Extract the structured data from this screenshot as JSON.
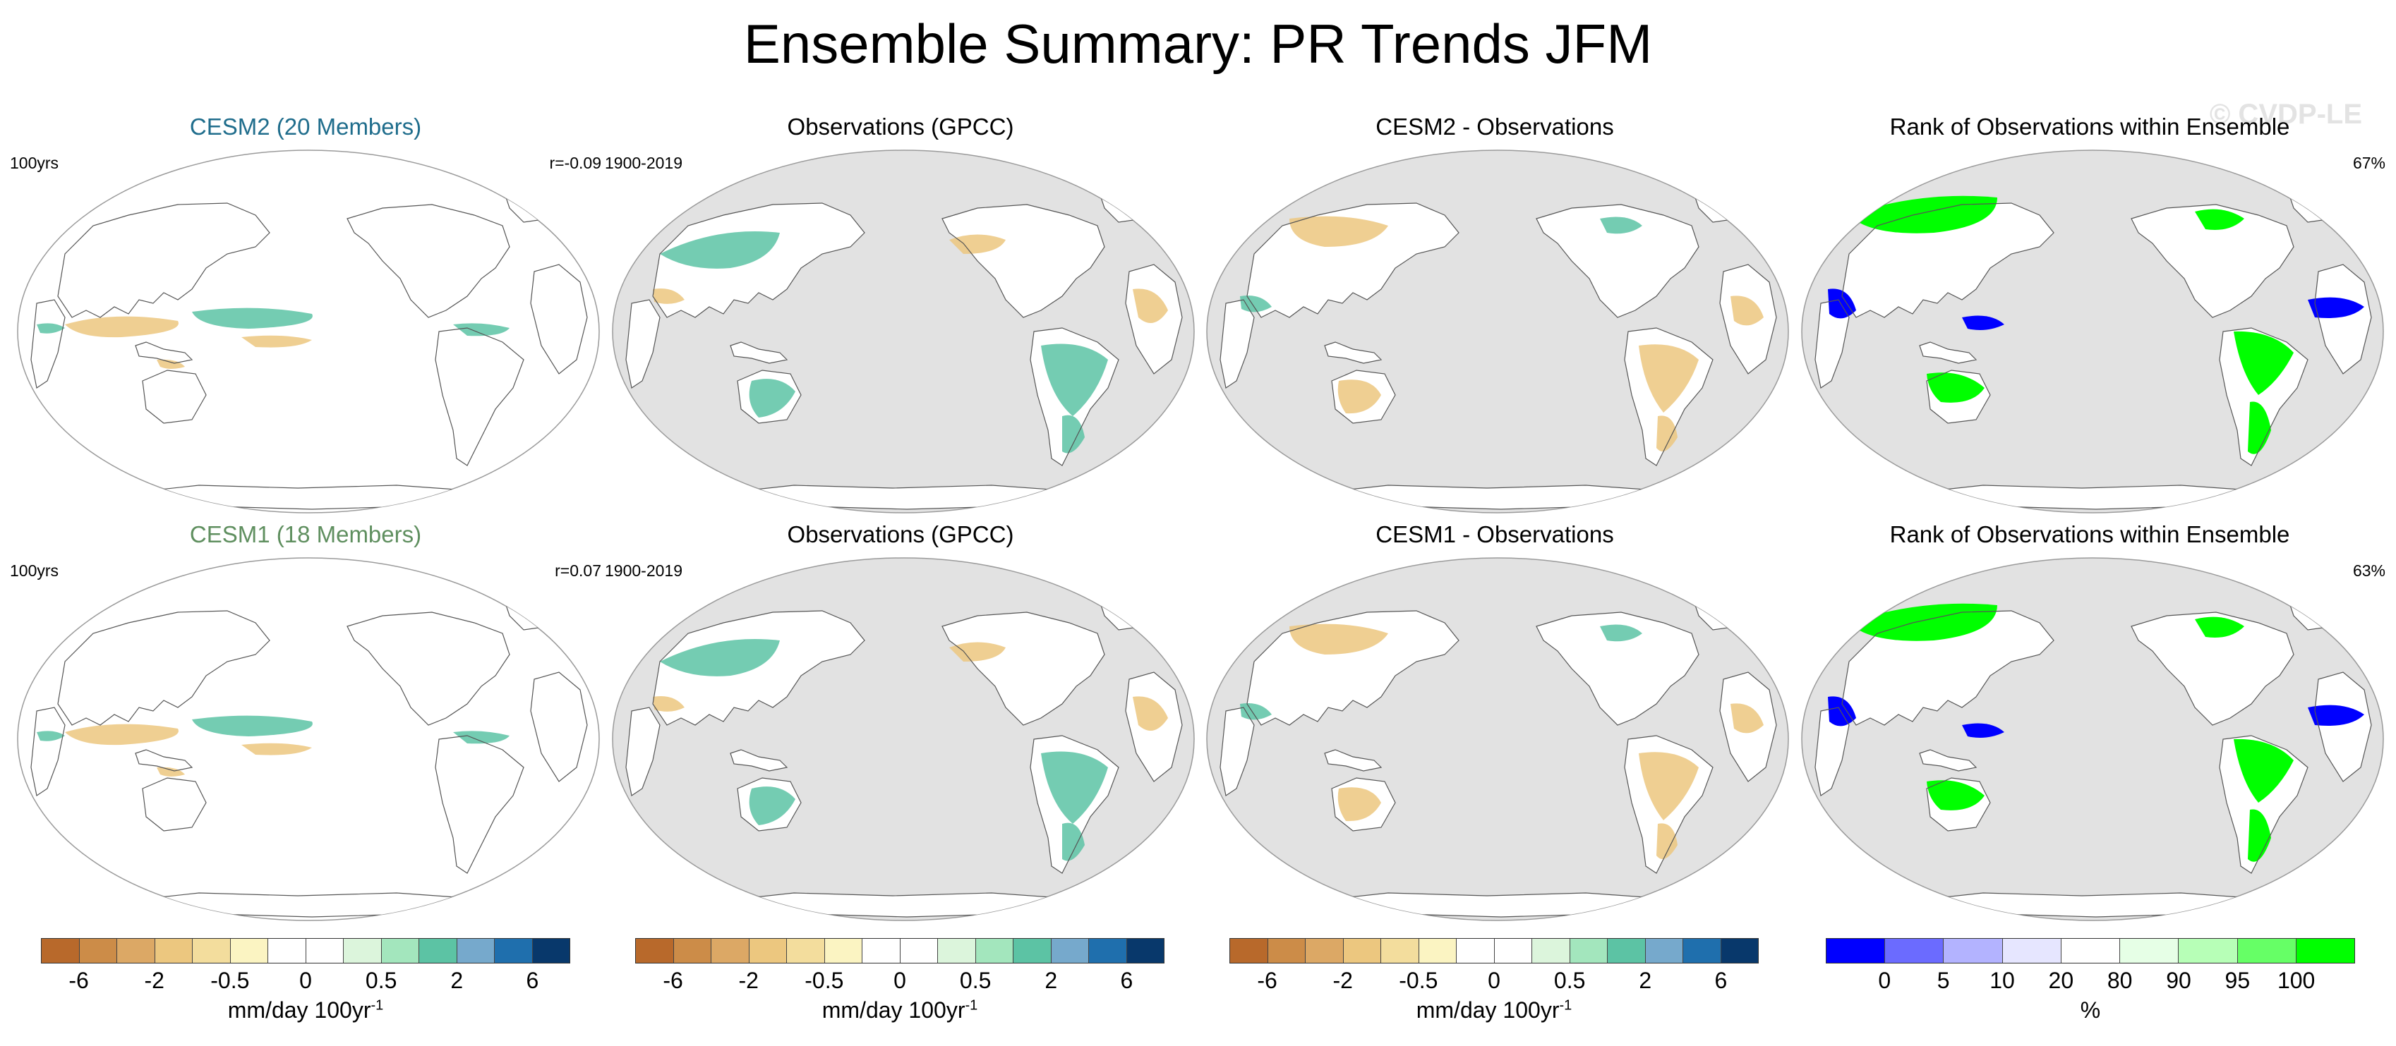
{
  "title": "Ensemble Summary: PR Trends JFM",
  "watermark": "© CVDP-LE",
  "rows": [
    {
      "panels": [
        {
          "title": "CESM2 (20 Members)",
          "title_color": "#1f6d8c",
          "left": "100yrs",
          "right": "r=-0.09",
          "kind": "model"
        },
        {
          "title": "Observations (GPCC)",
          "title_color": "#000000",
          "left": "1900-2019",
          "right": "",
          "kind": "obs"
        },
        {
          "title": "CESM2 - Observations",
          "title_color": "#000000",
          "left": "",
          "right": "",
          "kind": "diff"
        },
        {
          "title": "Rank of Observations within Ensemble",
          "title_color": "#000000",
          "left": "",
          "right": "67%",
          "kind": "rank"
        }
      ]
    },
    {
      "panels": [
        {
          "title": "CESM1 (18 Members)",
          "title_color": "#5f8f5f",
          "left": "100yrs",
          "right": "r=0.07",
          "kind": "model"
        },
        {
          "title": "Observations (GPCC)",
          "title_color": "#000000",
          "left": "1900-2019",
          "right": "",
          "kind": "obs"
        },
        {
          "title": "CESM1 - Observations",
          "title_color": "#000000",
          "left": "",
          "right": "",
          "kind": "diff"
        },
        {
          "title": "Rank of Observations within Ensemble",
          "title_color": "#000000",
          "left": "",
          "right": "63%",
          "kind": "rank"
        }
      ]
    }
  ],
  "precip_colorbar": {
    "colors": [
      "#b8692b",
      "#cc8c48",
      "#dca865",
      "#ecc77f",
      "#f3dd9d",
      "#fbf4c2",
      "#ffffff",
      "#ffffff",
      "#dcf5dc",
      "#a3e6bd",
      "#5cc3a4",
      "#76a9cc",
      "#1f6fad",
      "#08386b"
    ],
    "ticks": [
      "-6",
      "-2",
      "-0.5",
      "0",
      "0.5",
      "2",
      "6"
    ],
    "unit": "mm/day 100yr",
    "unit_sup": "-1"
  },
  "rank_colorbar": {
    "colors": [
      "#0000ff",
      "#6b6bff",
      "#b3b3ff",
      "#e6e6ff",
      "#ffffff",
      "#e6ffe6",
      "#b7ffb7",
      "#66ff66",
      "#00ff00"
    ],
    "ticks": [
      "0",
      "5",
      "10",
      "20",
      "80",
      "90",
      "95",
      "100"
    ],
    "unit": "%"
  },
  "colors": {
    "ocean_obs": "#e2e2e2",
    "land_outline": "#555555",
    "rank_low": "#0000ff",
    "rank_high": "#00ff00",
    "dry": "#ecc77f",
    "wet": "#5cc3a4"
  }
}
